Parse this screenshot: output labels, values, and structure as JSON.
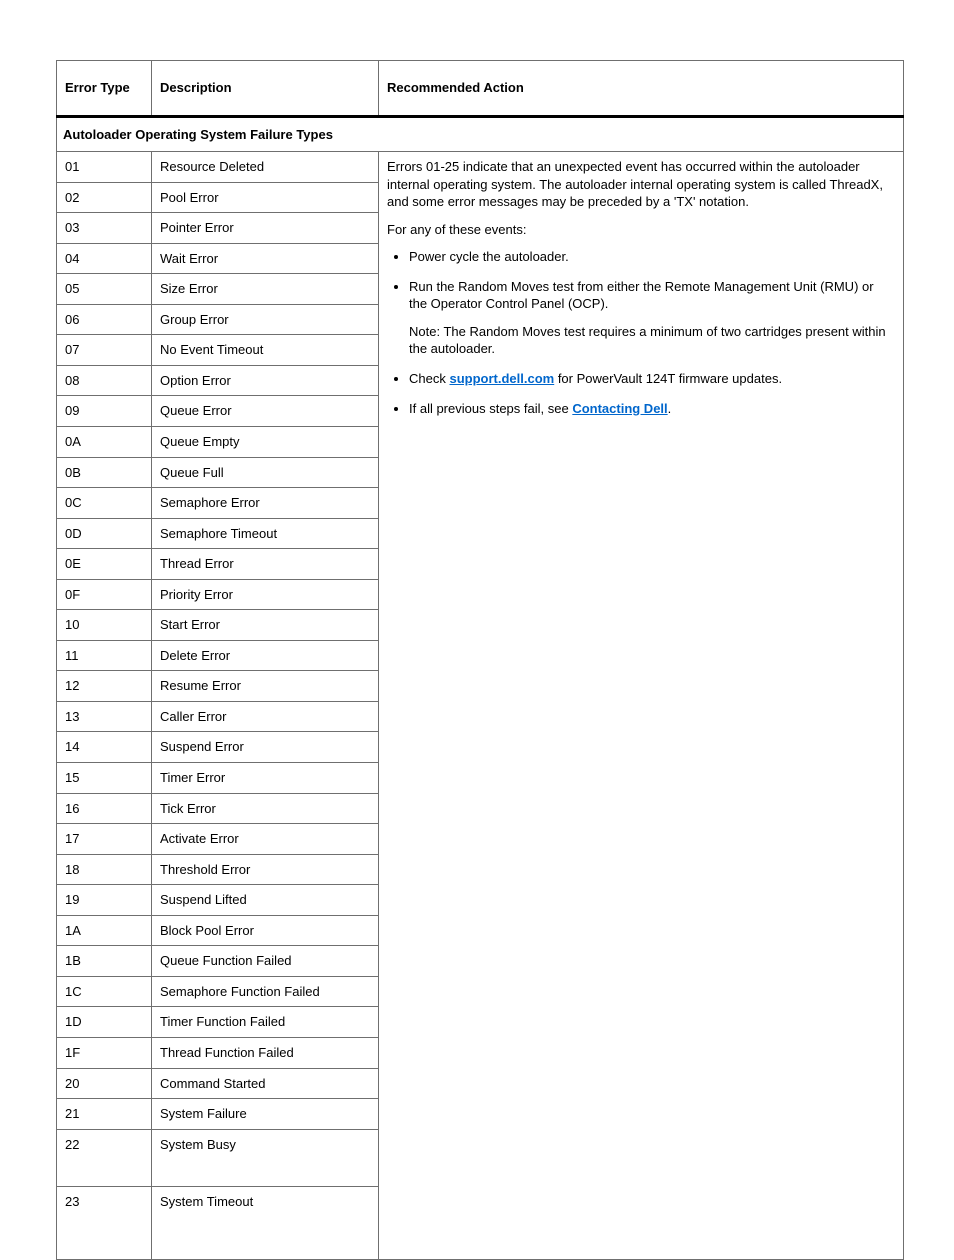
{
  "headers": {
    "code": "Error Type",
    "desc": "Description",
    "action": "Recommended Action"
  },
  "section_title": "Autoloader Operating System Failure Types",
  "rows": [
    {
      "code": "01",
      "desc": "Resource Deleted"
    },
    {
      "code": "02",
      "desc": "Pool Error"
    },
    {
      "code": "03",
      "desc": "Pointer Error"
    },
    {
      "code": "04",
      "desc": "Wait Error"
    },
    {
      "code": "05",
      "desc": "Size Error"
    },
    {
      "code": "06",
      "desc": "Group Error"
    },
    {
      "code": "07",
      "desc": "No Event Timeout"
    },
    {
      "code": "08",
      "desc": "Option Error"
    },
    {
      "code": "09",
      "desc": "Queue Error"
    },
    {
      "code": "0A",
      "desc": "Queue Empty"
    },
    {
      "code": "0B",
      "desc": "Queue Full"
    },
    {
      "code": "0C",
      "desc": "Semaphore Error"
    },
    {
      "code": "0D",
      "desc": "Semaphore Timeout"
    },
    {
      "code": "0E",
      "desc": "Thread Error"
    },
    {
      "code": "0F",
      "desc": "Priority Error"
    },
    {
      "code": "10",
      "desc": "Start Error"
    },
    {
      "code": "11",
      "desc": "Delete Error"
    },
    {
      "code": "12",
      "desc": "Resume Error"
    },
    {
      "code": "13",
      "desc": "Caller Error"
    },
    {
      "code": "14",
      "desc": "Suspend Error"
    },
    {
      "code": "15",
      "desc": "Timer Error"
    },
    {
      "code": "16",
      "desc": "Tick Error"
    },
    {
      "code": "17",
      "desc": "Activate Error"
    },
    {
      "code": "18",
      "desc": "Threshold Error"
    },
    {
      "code": "19",
      "desc": "Suspend Lifted"
    },
    {
      "code": "1A",
      "desc": "Block Pool Error"
    },
    {
      "code": "1B",
      "desc": "Queue Function Failed"
    },
    {
      "code": "1C",
      "desc": "Semaphore Function Failed"
    },
    {
      "code": "1D",
      "desc": "Timer Function Failed"
    },
    {
      "code": "1F",
      "desc": "Thread Function Failed"
    },
    {
      "code": "20",
      "desc": "Command Started"
    },
    {
      "code": "21",
      "desc": "System Failure"
    },
    {
      "code": "22",
      "desc": "System Busy"
    },
    {
      "code": "23",
      "desc": "System Timeout"
    }
  ],
  "action": {
    "intro": "Errors 01-25 indicate that an unexpected event has occurred within the autoloader internal operating system. The autoloader internal operating system is called ThreadX, and some error messages may be preceded by a 'TX' notation.",
    "for_any": "For any of these events:",
    "b1": "Power cycle the autoloader.",
    "b2a": "Run the Random Moves test from either the Remote Management Unit (RMU) or the Operator Control Panel (OCP).",
    "b2note": "Note: The Random Moves test requires a minimum of two cartridges present within the autoloader.",
    "b3_pre": "Check ",
    "b3_link": "support.dell.com",
    "b3_post": " for PowerVault 124T firmware updates.",
    "b4_pre": "If all previous steps fail, see ",
    "b4_link": "Contacting Dell",
    "b4_post": "."
  }
}
